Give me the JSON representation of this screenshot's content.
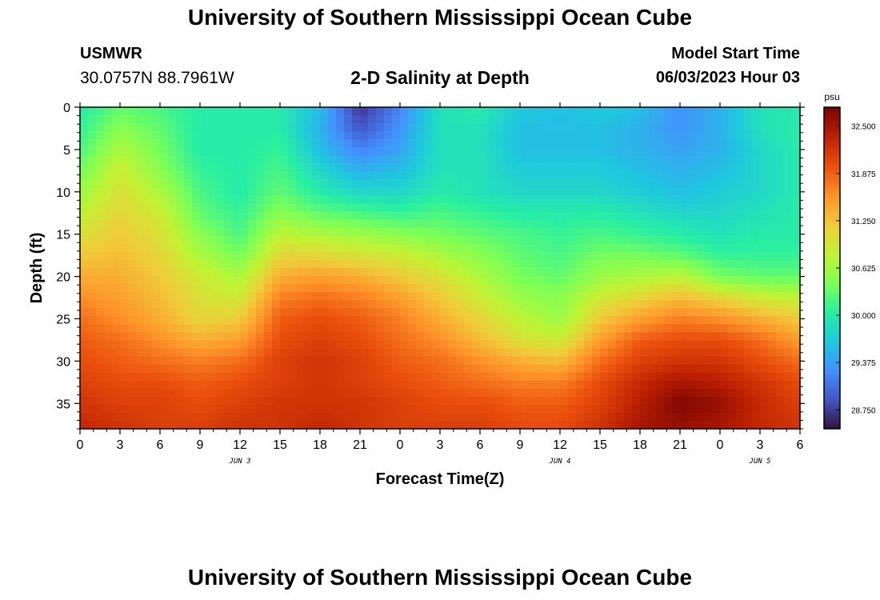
{
  "header": {
    "title": "University of Southern Mississippi Ocean Cube",
    "station_name": "USMWR",
    "station_coords": "30.0757N  88.7961W",
    "subtitle": "2-D Salinity at Depth",
    "model_label": "Model Start Time",
    "model_time": "06/03/2023 Hour 03"
  },
  "footer": {
    "title": "University of Southern Mississippi Ocean Cube"
  },
  "chart_data": {
    "type": "heatmap",
    "title": "2-D Salinity at Depth",
    "xlabel": "Forecast Time(Z)",
    "ylabel": "Depth (ft)",
    "x_tick_labels": [
      "0",
      "3",
      "6",
      "9",
      "12",
      "15",
      "18",
      "21",
      "0",
      "3",
      "6",
      "9",
      "12",
      "15",
      "18",
      "21",
      "0",
      "3",
      "6"
    ],
    "x_date_labels": [
      {
        "label": "JUN 3",
        "at_hour": 12
      },
      {
        "label": "JUN 4",
        "at_hour": 36
      },
      {
        "label": "JUN 5",
        "at_hour": 51
      }
    ],
    "x_range_hours": [
      0,
      54
    ],
    "ylim": [
      0,
      38
    ],
    "y_inverted": true,
    "y_ticks": [
      0,
      5,
      10,
      15,
      20,
      25,
      30,
      35
    ],
    "colorbar": {
      "unit": "psu",
      "min": 28.5,
      "max": 32.75,
      "tick_values": [
        32.5,
        31.875,
        31.25,
        30.625,
        30.0,
        29.375,
        28.75
      ],
      "tick_labels": [
        "32.500",
        "31.875",
        "31.250",
        "30.625",
        "30.000",
        "29.375",
        "28.750"
      ]
    },
    "colormap": [
      "#30123b",
      "#4454c4",
      "#4490fe",
      "#1fc8de",
      "#29efa2",
      "#7dff56",
      "#c1f334",
      "#f1ca3a",
      "#fe922a",
      "#ea4f0d",
      "#be2102",
      "#7a0403"
    ],
    "grid_hours": [
      0,
      3,
      6,
      9,
      12,
      15,
      18,
      21,
      24,
      27,
      30,
      33,
      36,
      39,
      42,
      45,
      48,
      51,
      54
    ],
    "grid_depths": [
      0,
      2.5,
      5,
      7.5,
      10,
      12.5,
      15,
      17.5,
      20,
      22.5,
      25,
      27.5,
      30,
      32.5,
      35,
      37.5
    ],
    "salinity_psu": [
      [
        30.0,
        30.3,
        30.2,
        30.0,
        30.0,
        30.0,
        29.6,
        28.7,
        29.2,
        29.9,
        30.0,
        29.7,
        29.6,
        29.7,
        29.6,
        29.3,
        29.5,
        29.9,
        30.0
      ],
      [
        30.1,
        30.5,
        30.3,
        30.0,
        30.0,
        30.0,
        29.5,
        28.9,
        29.3,
        29.9,
        29.9,
        29.6,
        29.6,
        29.6,
        29.5,
        29.3,
        29.5,
        29.9,
        30.0
      ],
      [
        30.2,
        30.7,
        30.4,
        30.0,
        30.0,
        30.1,
        29.6,
        29.2,
        29.4,
        29.9,
        29.9,
        29.6,
        29.6,
        29.6,
        29.5,
        29.4,
        29.5,
        29.8,
        30.0
      ],
      [
        30.4,
        30.9,
        30.5,
        30.1,
        30.0,
        30.2,
        29.8,
        29.5,
        29.6,
        29.9,
        29.9,
        29.7,
        29.7,
        29.7,
        29.6,
        29.5,
        29.6,
        29.8,
        30.0
      ],
      [
        30.6,
        31.0,
        30.7,
        30.2,
        30.0,
        30.3,
        30.0,
        29.8,
        29.8,
        30.0,
        29.9,
        29.8,
        29.8,
        29.8,
        29.7,
        29.6,
        29.7,
        29.8,
        30.0
      ],
      [
        30.8,
        31.1,
        30.9,
        30.3,
        30.1,
        30.5,
        30.3,
        30.2,
        30.1,
        30.2,
        30.1,
        30.0,
        30.0,
        30.0,
        29.9,
        29.8,
        29.8,
        29.9,
        30.0
      ],
      [
        31.0,
        31.2,
        31.0,
        30.5,
        30.2,
        30.8,
        30.7,
        30.6,
        30.5,
        30.4,
        30.3,
        30.2,
        30.1,
        30.2,
        30.1,
        30.0,
        29.9,
        30.0,
        30.0
      ],
      [
        31.2,
        31.3,
        31.1,
        30.7,
        30.4,
        31.1,
        31.1,
        31.0,
        30.9,
        30.7,
        30.5,
        30.3,
        30.2,
        30.4,
        30.4,
        30.3,
        30.1,
        30.1,
        30.1
      ],
      [
        31.4,
        31.4,
        31.2,
        30.9,
        30.7,
        31.4,
        31.5,
        31.4,
        31.2,
        31.0,
        30.7,
        30.4,
        30.3,
        30.6,
        30.7,
        30.8,
        30.4,
        30.3,
        30.3
      ],
      [
        31.6,
        31.5,
        31.3,
        31.0,
        30.9,
        31.7,
        31.8,
        31.7,
        31.5,
        31.2,
        30.9,
        30.6,
        30.5,
        30.9,
        31.1,
        31.3,
        31.1,
        30.9,
        30.8
      ],
      [
        31.8,
        31.6,
        31.4,
        31.1,
        31.2,
        31.9,
        32.0,
        31.9,
        31.7,
        31.4,
        31.1,
        30.8,
        30.6,
        31.2,
        31.5,
        31.7,
        31.6,
        31.4,
        31.2
      ],
      [
        31.9,
        31.8,
        31.6,
        31.4,
        31.5,
        32.0,
        32.1,
        32.0,
        31.8,
        31.6,
        31.3,
        31.0,
        30.9,
        31.5,
        31.9,
        32.0,
        32.0,
        31.8,
        31.5
      ],
      [
        32.0,
        31.9,
        31.8,
        31.7,
        31.8,
        32.1,
        32.2,
        32.1,
        31.9,
        31.8,
        31.6,
        31.4,
        31.3,
        31.8,
        32.1,
        32.2,
        32.2,
        32.0,
        31.8
      ],
      [
        32.1,
        32.0,
        32.0,
        31.9,
        32.0,
        32.1,
        32.2,
        32.1,
        32.0,
        31.9,
        31.8,
        31.7,
        31.7,
        32.0,
        32.3,
        32.5,
        32.4,
        32.2,
        32.0
      ],
      [
        32.2,
        32.1,
        32.1,
        32.0,
        32.1,
        32.2,
        32.2,
        32.2,
        32.1,
        32.0,
        32.0,
        31.9,
        31.9,
        32.1,
        32.4,
        32.7,
        32.6,
        32.3,
        32.1
      ],
      [
        32.3,
        32.2,
        32.1,
        32.1,
        32.2,
        32.2,
        32.3,
        32.2,
        32.1,
        32.1,
        32.1,
        32.0,
        32.0,
        32.2,
        32.5,
        32.6,
        32.5,
        32.3,
        32.2
      ]
    ]
  }
}
